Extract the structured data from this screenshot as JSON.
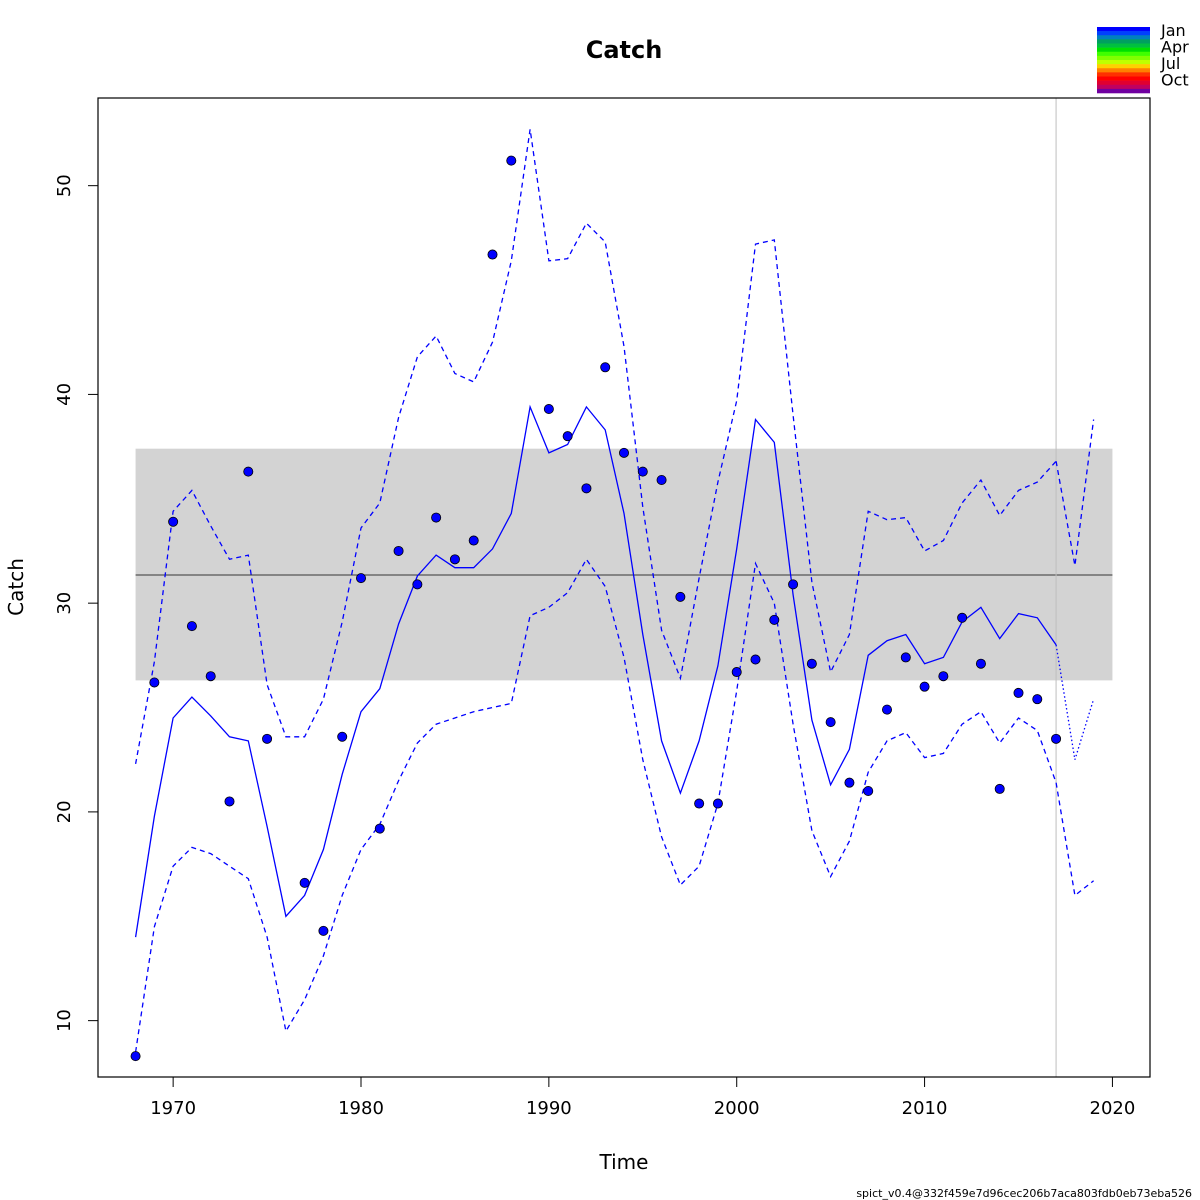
{
  "chart_data": {
    "type": "line",
    "title": "Catch",
    "xlabel": "Time",
    "ylabel": "Catch",
    "xlim": [
      1966,
      2022
    ],
    "ylim": [
      7.3,
      54.2
    ],
    "x_ticks": [
      1970,
      1980,
      1990,
      2000,
      2010,
      2020
    ],
    "y_ticks": [
      10,
      20,
      30,
      40,
      50
    ],
    "reference_band": {
      "lower": 26.3,
      "upper": 37.4,
      "color": "#d3d3d3"
    },
    "reference_line": {
      "value": 31.35,
      "color": "#000000"
    },
    "vertical_marker": {
      "x": 2017,
      "color": "#bebebe"
    },
    "observed_points": {
      "x": [
        1968,
        1969,
        1970,
        1971,
        1972,
        1973,
        1974,
        1975,
        1976,
        1977,
        1978,
        1979,
        1980,
        1981,
        1982,
        1983,
        1984,
        1985,
        1986,
        1987,
        1988,
        1989,
        1990,
        1991,
        1992,
        1993,
        1994,
        1995,
        1996,
        1997,
        1998,
        1999,
        2000,
        2001,
        2002,
        2003,
        2004,
        2005,
        2006,
        2007,
        2008,
        2009,
        2010,
        2011,
        2012,
        2013,
        2014,
        2015,
        2016,
        2017
      ],
      "y": [
        8.3,
        26.2,
        33.9,
        28.9,
        26.5,
        20.5,
        36.3,
        23.5,
        null,
        16.6,
        14.3,
        23.6,
        31.2,
        19.2,
        32.5,
        30.9,
        34.1,
        32.1,
        33.0,
        46.7,
        51.2,
        null,
        39.3,
        38.0,
        35.5,
        41.3,
        37.2,
        36.3,
        35.9,
        30.3,
        20.4,
        20.4,
        26.7,
        27.3,
        29.2,
        30.9,
        27.1,
        24.3,
        21.4,
        21.0,
        24.9,
        27.4,
        26.0,
        26.5,
        29.3,
        27.1,
        21.1,
        25.7,
        25.4,
        23.5
      ],
      "color": "#0000ff"
    },
    "series": [
      {
        "name": "estimate",
        "style": "solid",
        "x": [
          1968,
          1969,
          1970,
          1971,
          1972,
          1973,
          1974,
          1975,
          1976,
          1977,
          1978,
          1979,
          1980,
          1981,
          1982,
          1983,
          1984,
          1985,
          1986,
          1987,
          1988,
          1989,
          1990,
          1991,
          1992,
          1993,
          1994,
          1995,
          1996,
          1997,
          1998,
          1999,
          2000,
          2001,
          2002,
          2003,
          2004,
          2005,
          2006,
          2007,
          2008,
          2009,
          2010,
          2011,
          2012,
          2013,
          2014,
          2015,
          2016,
          2017
        ],
        "y": [
          14.0,
          19.8,
          24.5,
          25.5,
          24.6,
          23.6,
          23.4,
          19.3,
          15.0,
          16.0,
          18.2,
          21.8,
          24.8,
          25.9,
          29.0,
          31.3,
          32.3,
          31.7,
          31.7,
          32.6,
          34.3,
          39.4,
          37.2,
          37.6,
          39.4,
          38.3,
          34.3,
          28.5,
          23.4,
          20.9,
          23.4,
          27.0,
          32.6,
          38.8,
          37.7,
          30.4,
          24.4,
          21.3,
          23.0,
          27.5,
          28.2,
          28.5,
          27.1,
          27.4,
          29.1,
          29.8,
          28.3,
          29.5,
          29.3,
          28.0
        ]
      },
      {
        "name": "upper",
        "style": "dashed",
        "x": [
          1968,
          1969,
          1970,
          1971,
          1972,
          1973,
          1974,
          1975,
          1976,
          1977,
          1978,
          1979,
          1980,
          1981,
          1982,
          1983,
          1984,
          1985,
          1986,
          1987,
          1988,
          1989,
          1990,
          1991,
          1992,
          1993,
          1994,
          1995,
          1996,
          1997,
          1998,
          1999,
          2000,
          2001,
          2002,
          2003,
          2004,
          2005,
          2006,
          2007,
          2008,
          2009,
          2010,
          2011,
          2012,
          2013,
          2014,
          2015,
          2016,
          2017
        ],
        "y": [
          22.3,
          27.2,
          34.4,
          35.4,
          33.7,
          32.1,
          32.3,
          26.1,
          23.6,
          23.6,
          25.4,
          29.1,
          33.6,
          34.8,
          38.9,
          41.8,
          42.8,
          41.0,
          40.6,
          42.5,
          46.4,
          52.7,
          46.4,
          46.5,
          48.2,
          47.3,
          42.3,
          34.6,
          28.7,
          26.4,
          31.2,
          35.8,
          39.7,
          47.2,
          47.4,
          39.0,
          31.0,
          26.7,
          28.5,
          34.4,
          34.0,
          34.1,
          32.5,
          33.0,
          34.8,
          35.9,
          34.2,
          35.4,
          35.8,
          36.8
        ]
      },
      {
        "name": "lower",
        "style": "dashed",
        "x": [
          1968,
          1969,
          1970,
          1971,
          1972,
          1973,
          1974,
          1975,
          1976,
          1977,
          1978,
          1979,
          1980,
          1981,
          1982,
          1983,
          1984,
          1985,
          1986,
          1987,
          1988,
          1989,
          1990,
          1991,
          1992,
          1993,
          1994,
          1995,
          1996,
          1997,
          1998,
          1999,
          2000,
          2001,
          2002,
          2003,
          2004,
          2005,
          2006,
          2007,
          2008,
          2009,
          2010,
          2011,
          2012,
          2013,
          2014,
          2015,
          2016,
          2017
        ],
        "y": [
          8.5,
          14.5,
          17.4,
          18.3,
          18.0,
          17.4,
          16.8,
          14.0,
          9.5,
          11.0,
          13.1,
          16.0,
          18.2,
          19.4,
          21.5,
          23.3,
          24.2,
          24.5,
          24.8,
          25.0,
          25.2,
          29.4,
          29.8,
          30.5,
          32.1,
          30.8,
          27.4,
          22.5,
          18.8,
          16.5,
          17.4,
          20.4,
          25.8,
          31.9,
          30.0,
          24.2,
          19.1,
          16.9,
          18.6,
          21.9,
          23.4,
          23.8,
          22.6,
          22.8,
          24.2,
          24.8,
          23.3,
          24.5,
          23.9,
          21.4
        ]
      },
      {
        "name": "predicted",
        "style": "dotted",
        "x": [
          2017,
          2018,
          2019
        ],
        "y": [
          28.0,
          22.5,
          25.4
        ]
      },
      {
        "name": "predicted-upper",
        "style": "dashed",
        "x": [
          2017,
          2018,
          2019
        ],
        "y": [
          36.8,
          31.8,
          38.8
        ]
      },
      {
        "name": "predicted-lower",
        "style": "dashed",
        "x": [
          2017,
          2018,
          2019
        ],
        "y": [
          21.4,
          16.0,
          16.7
        ]
      }
    ],
    "line_color": "#0000ff",
    "legend": {
      "placement": "top-right",
      "labels": [
        "Jan",
        "Apr",
        "Jul",
        "Oct"
      ],
      "colors": [
        "#0000ff",
        "#0040ff",
        "#0080c0",
        "#00a060",
        "#00c040",
        "#00e000",
        "#40ff00",
        "#80ff00",
        "#c0ff00",
        "#ffd000",
        "#ff8000",
        "#ff3000",
        "#ff0000",
        "#e00030",
        "#c00060",
        "#7000a0"
      ]
    }
  },
  "footer": {
    "version": "spict_v0.4@332f459e7d96cec206b7aca803fdb0eb73eba526"
  }
}
